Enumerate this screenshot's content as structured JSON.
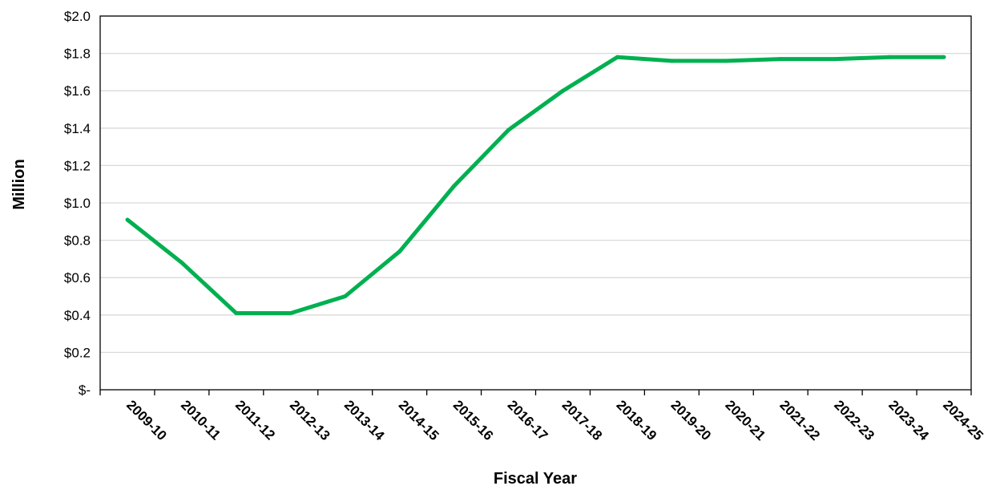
{
  "chart_data": {
    "type": "line",
    "title": "",
    "xlabel": "Fiscal Year",
    "ylabel": "Million",
    "categories": [
      "2009-10",
      "2010-11",
      "2011-12",
      "2012-13",
      "2013-14",
      "2014-15",
      "2015-16",
      "2016-17",
      "2017-18",
      "2018-19",
      "2019-20",
      "2020-21",
      "2021-22",
      "2022-23",
      "2023-24",
      "2024-25"
    ],
    "series": [
      {
        "values": [
          0.91,
          0.68,
          0.41,
          0.41,
          0.5,
          0.74,
          1.09,
          1.39,
          1.6,
          1.78,
          1.76,
          1.76,
          1.77,
          1.77,
          1.78,
          1.78
        ]
      }
    ],
    "ylim": [
      0,
      2.0
    ],
    "yticks": [
      0,
      0.2,
      0.4,
      0.6,
      0.8,
      1.0,
      1.2,
      1.4,
      1.6,
      1.8,
      2.0
    ],
    "ytick_labels": [
      "$-",
      "$0.2",
      "$0.4",
      "$0.6",
      "$0.8",
      "$1.0",
      "$1.2",
      "$1.4",
      "$1.6",
      "$1.8",
      "$2.0"
    ],
    "grid": true,
    "legend": "none",
    "line_color": "#00B050",
    "grid_color": "#D9D9D9",
    "axis_color": "#000000"
  }
}
